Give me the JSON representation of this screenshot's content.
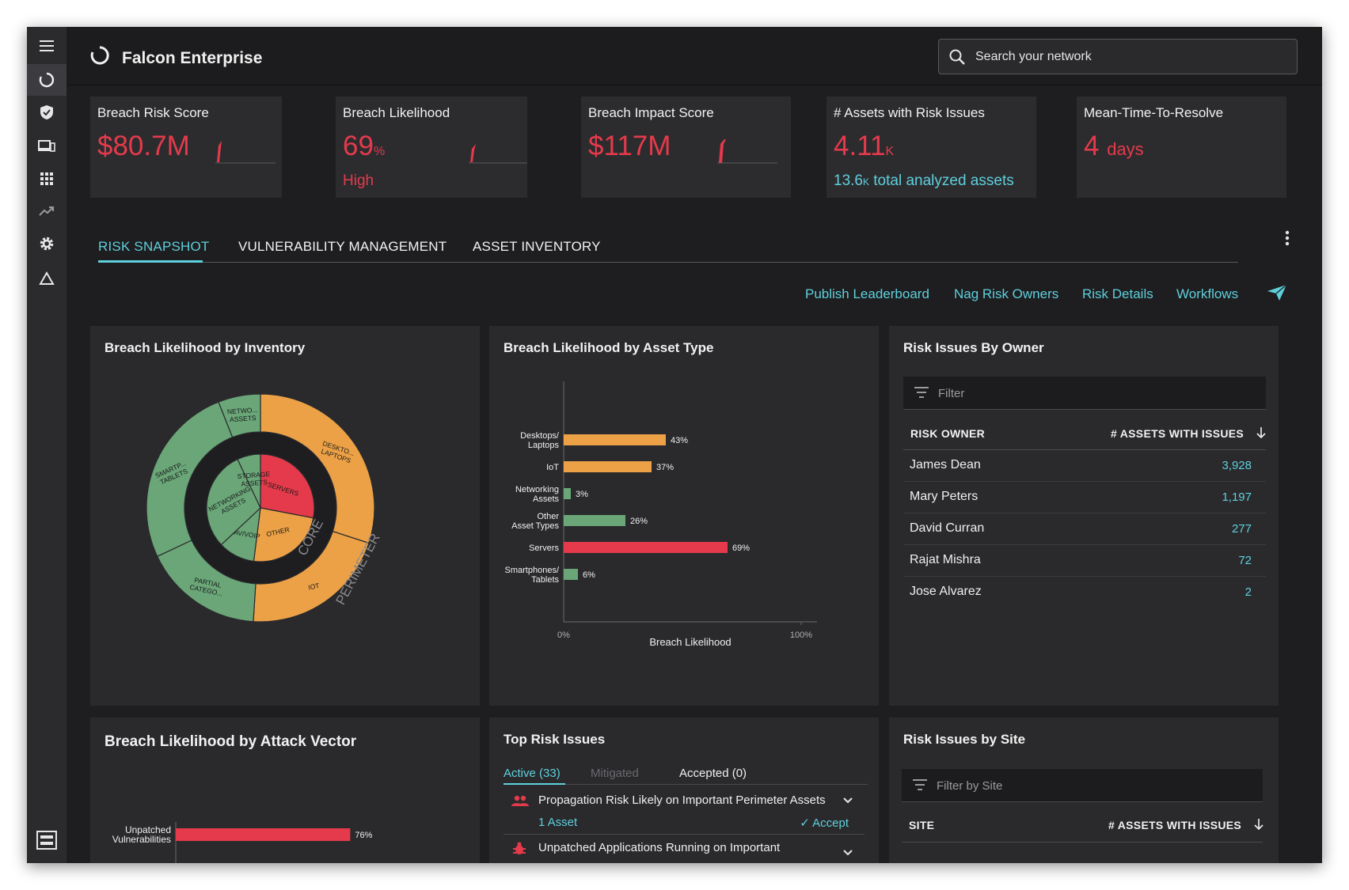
{
  "app": {
    "title": "Falcon Enterprise"
  },
  "search": {
    "placeholder": "Search your network"
  },
  "kpis": [
    {
      "title": "Breach Risk Score",
      "value": "$80.7M",
      "unit": ""
    },
    {
      "title": "Breach Likelihood",
      "value": "69",
      "unit": "%",
      "sub": "High"
    },
    {
      "title": "Breach Impact Score",
      "value": "$117M",
      "unit": ""
    },
    {
      "title": "# Assets with Risk Issues",
      "value": "4.11",
      "unit": "K",
      "sub_value": "13.6",
      "sub_unit": "K",
      "sub_text": " total analyzed assets"
    },
    {
      "title": "Mean-Time-To-Resolve",
      "value": "4",
      "unit": "days"
    }
  ],
  "tabs": [
    "RISK SNAPSHOT",
    "VULNERABILITY MANAGEMENT",
    "ASSET INVENTORY"
  ],
  "actions": [
    "Publish Leaderboard",
    "Nag Risk Owners",
    "Risk Details",
    "Workflows"
  ],
  "panels": {
    "inventory": {
      "title": "Breach Likelihood by Inventory"
    },
    "asset_type": {
      "title": "Breach Likelihood by Asset Type"
    },
    "owners": {
      "title": "Risk Issues By Owner",
      "filter_placeholder": "Filter",
      "col_owner": "RISK OWNER",
      "col_count": "# ASSETS WITH ISSUES",
      "rows": [
        {
          "name": "James Dean",
          "count": "3,928"
        },
        {
          "name": "Mary Peters",
          "count": "1,197"
        },
        {
          "name": "David Curran",
          "count": "277"
        },
        {
          "name": "Rajat Mishra",
          "count": "72"
        },
        {
          "name": "Jose Alvarez",
          "count": "2"
        }
      ]
    },
    "attack_vector": {
      "title": "Breach Likelihood by Attack Vector"
    },
    "top_risk": {
      "title": "Top Risk Issues",
      "tabs": [
        "Active (33)",
        "Mitigated",
        "Accepted (0)"
      ],
      "issues": [
        {
          "text": "Propagation Risk Likely on Important Perimeter Assets",
          "assets": "1 Asset",
          "accept": "Accept"
        },
        {
          "text": "Unpatched Applications Running on Important"
        }
      ]
    },
    "sites": {
      "title": "Risk Issues by Site",
      "filter_placeholder": "Filter by Site",
      "col_site": "SITE",
      "col_count": "# ASSETS WITH ISSUES"
    }
  },
  "colors": {
    "accent": "#5ed0dc",
    "danger": "#e53a4b",
    "orange": "#eca146",
    "green": "#6aa678"
  },
  "chart_data": [
    {
      "type": "pie",
      "title": "Breach Likelihood by Inventory",
      "rings": [
        {
          "name": "CORE",
          "slices": [
            {
              "label": "SERVERS",
              "value": 28,
              "level": "red"
            },
            {
              "label": "OTHER",
              "value": 24,
              "level": "orange"
            },
            {
              "label": "AV/VOIP",
              "value": 11,
              "level": "green"
            },
            {
              "label": "NETWORKING ASSETS",
              "value": 30,
              "level": "green"
            },
            {
              "label": "STORAGE ASSETS",
              "value": 7,
              "level": "green"
            }
          ]
        },
        {
          "name": "PERIMETER",
          "slices": [
            {
              "label": "DESKTO... LAPTOPS",
              "value": 30,
              "level": "orange"
            },
            {
              "label": "IOT",
              "value": 21,
              "level": "orange"
            },
            {
              "label": "PARTIAL CATEGO...",
              "value": 17,
              "level": "green"
            },
            {
              "label": "SMARTP... TABLETS",
              "value": 26,
              "level": "green"
            },
            {
              "label": "NETWO... ASSETS",
              "value": 6,
              "level": "green"
            }
          ]
        }
      ]
    },
    {
      "type": "bar",
      "title": "Breach Likelihood by Asset Type",
      "categories": [
        "Desktops/ Laptops",
        "IoT",
        "Networking Assets",
        "Other Asset Types",
        "Servers",
        "Smartphones/ Tablets"
      ],
      "values": [
        43,
        37,
        3,
        26,
        69,
        6
      ],
      "value_labels": [
        "43%",
        "37%",
        "3%",
        "26%",
        "69%",
        "6%"
      ],
      "levels": [
        "orange",
        "orange",
        "green",
        "green",
        "red",
        "green"
      ],
      "xlabel": "Breach Likelihood",
      "xtick_labels": [
        "0%",
        "100%"
      ],
      "xlim": [
        0,
        100
      ]
    },
    {
      "type": "bar",
      "title": "Breach Likelihood by Attack Vector",
      "categories": [
        "Unpatched Vulnerabilities"
      ],
      "values": [
        76
      ],
      "value_labels": [
        "76%"
      ],
      "levels": [
        "red"
      ],
      "xlim": [
        0,
        100
      ]
    }
  ]
}
